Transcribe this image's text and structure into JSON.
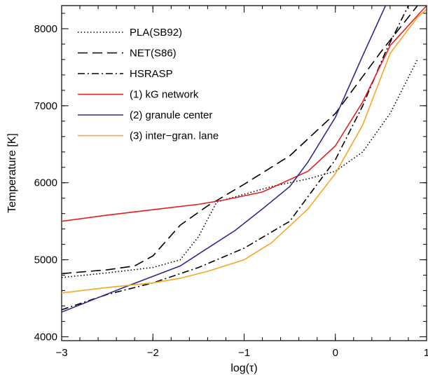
{
  "chart_data": {
    "type": "line",
    "title": "",
    "xlabel": "log(τ)",
    "ylabel": "Temperature [K]",
    "xlim": [
      -3,
      1
    ],
    "ylim": [
      3950,
      8300
    ],
    "grid": false,
    "legend_position": "top-left",
    "x_ticks": [
      {
        "value": -3,
        "label": "−3"
      },
      {
        "value": -2,
        "label": "−2"
      },
      {
        "value": -1,
        "label": "−1"
      },
      {
        "value": 0,
        "label": "0"
      },
      {
        "value": 1,
        "label": "1"
      }
    ],
    "y_ticks": [
      {
        "value": 4000,
        "label": "4000"
      },
      {
        "value": 5000,
        "label": "5000"
      },
      {
        "value": 6000,
        "label": "6000"
      },
      {
        "value": 7000,
        "label": "7000"
      },
      {
        "value": 8000,
        "label": "8000"
      }
    ],
    "series": [
      {
        "name": "PLA(SB92)",
        "color": "#000000",
        "dash": "dotted",
        "points": [
          [
            -3.0,
            4770
          ],
          [
            -2.5,
            4830
          ],
          [
            -2.0,
            4900
          ],
          [
            -1.7,
            5000
          ],
          [
            -1.5,
            5300
          ],
          [
            -1.3,
            5750
          ],
          [
            -1.0,
            5850
          ],
          [
            -0.7,
            5950
          ],
          [
            -0.3,
            6050
          ],
          [
            0.0,
            6150
          ],
          [
            0.3,
            6400
          ],
          [
            0.6,
            6900
          ],
          [
            0.9,
            7600
          ]
        ]
      },
      {
        "name": "NET(S86)",
        "color": "#000000",
        "dash": "dashed",
        "points": [
          [
            -3.0,
            4820
          ],
          [
            -2.5,
            4870
          ],
          [
            -2.2,
            4920
          ],
          [
            -2.0,
            5050
          ],
          [
            -1.7,
            5450
          ],
          [
            -1.4,
            5700
          ],
          [
            -1.0,
            5980
          ],
          [
            -0.5,
            6350
          ],
          [
            0.0,
            6900
          ],
          [
            0.5,
            7700
          ],
          [
            0.9,
            8300
          ]
        ]
      },
      {
        "name": "HSRASP",
        "color": "#000000",
        "dash": "dashdot",
        "points": [
          [
            -3.0,
            4350
          ],
          [
            -2.5,
            4550
          ],
          [
            -2.0,
            4700
          ],
          [
            -1.5,
            4900
          ],
          [
            -1.0,
            5150
          ],
          [
            -0.5,
            5500
          ],
          [
            0.0,
            6300
          ],
          [
            0.3,
            7000
          ],
          [
            0.55,
            7700
          ],
          [
            0.8,
            8300
          ]
        ]
      },
      {
        "name": "(1) kG network",
        "color": "#e02020",
        "dash": "solid",
        "points": [
          [
            -3.0,
            5500
          ],
          [
            -2.5,
            5580
          ],
          [
            -2.0,
            5650
          ],
          [
            -1.5,
            5720
          ],
          [
            -1.2,
            5780
          ],
          [
            -0.8,
            5880
          ],
          [
            -0.3,
            6150
          ],
          [
            0.0,
            6480
          ],
          [
            0.3,
            7050
          ],
          [
            0.6,
            7780
          ],
          [
            1.0,
            8300
          ]
        ]
      },
      {
        "name": "(2) granule center",
        "color": "#2b2b8c",
        "dash": "solid",
        "points": [
          [
            -3.0,
            4320
          ],
          [
            -2.3,
            4650
          ],
          [
            -1.7,
            4920
          ],
          [
            -1.4,
            5150
          ],
          [
            -1.1,
            5380
          ],
          [
            -0.8,
            5660
          ],
          [
            -0.5,
            5950
          ],
          [
            -0.3,
            6270
          ],
          [
            0.0,
            6850
          ],
          [
            0.3,
            7650
          ],
          [
            0.55,
            8300
          ]
        ]
      },
      {
        "name": "(3) inter−gran. lane",
        "color": "#f5a623",
        "dash": "solid",
        "points": [
          [
            -3.0,
            4570
          ],
          [
            -2.5,
            4640
          ],
          [
            -2.0,
            4700
          ],
          [
            -1.7,
            4760
          ],
          [
            -1.4,
            4850
          ],
          [
            -1.0,
            5000
          ],
          [
            -0.7,
            5220
          ],
          [
            -0.3,
            5660
          ],
          [
            0.0,
            6120
          ],
          [
            0.3,
            6750
          ],
          [
            0.6,
            7680
          ],
          [
            0.9,
            8150
          ],
          [
            1.0,
            8250
          ]
        ]
      }
    ]
  }
}
